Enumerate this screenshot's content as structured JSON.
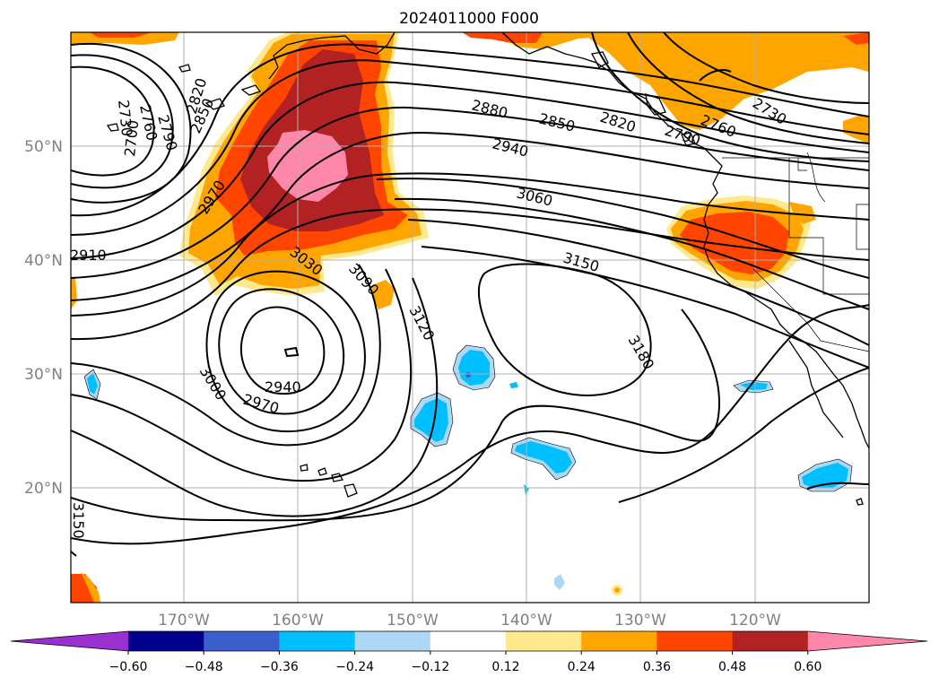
{
  "title": "2024011000 F000",
  "lat_ticks": [
    "50°N",
    "40°N",
    "30°N",
    "20°N"
  ],
  "lon_ticks": [
    "170°W",
    "160°W",
    "150°W",
    "140°W",
    "130°W",
    "120°W"
  ],
  "contour_labels": [
    "2730",
    "2760",
    "2790",
    "2820",
    "2850",
    "2880",
    "2940",
    "3060",
    "3150",
    "3180",
    "2910",
    "2970",
    "3030",
    "3090",
    "3120",
    "2940",
    "2970",
    "3000",
    "3150",
    "2700",
    "2730",
    "2760",
    "2790",
    "2820",
    "2850"
  ],
  "colorbar": {
    "labels": [
      "−0.60",
      "−0.48",
      "−0.36",
      "−0.24",
      "−0.12",
      "0.12",
      "0.24",
      "0.36",
      "0.48",
      "0.60"
    ],
    "colors": [
      "#9b30d0",
      "#00008b",
      "#3a5fcd",
      "#00bfff",
      "#add8f5",
      "#ffffff",
      "#ffe98c",
      "#ffa500",
      "#ff4500",
      "#b22222",
      "#ff88aa"
    ]
  },
  "colors": {
    "orange": "#ffa500",
    "light_yellow": "#ffe98c",
    "red_orange": "#ff4500",
    "dark_red": "#b22222",
    "pink": "#ff88aa",
    "light_blue": "#add8f5",
    "sky_blue": "#00bfff",
    "mid_blue": "#3a5fcd"
  }
}
